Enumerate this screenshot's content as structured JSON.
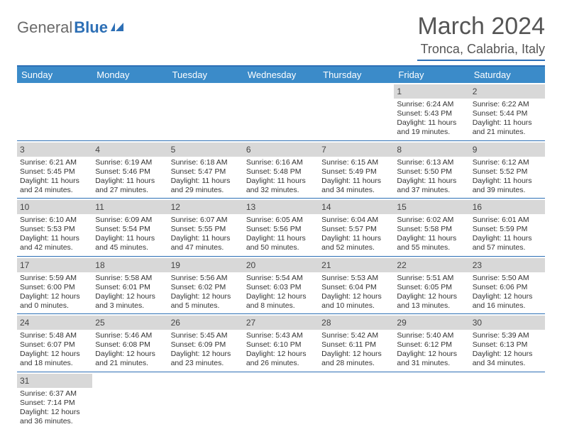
{
  "logo": {
    "general": "General",
    "blue": "Blue"
  },
  "title": "March 2024",
  "location": "Tronca, Calabria, Italy",
  "colors": {
    "header_bg": "#3b8bc9",
    "accent": "#2d6fb5",
    "daynum_bg": "#d8d8d8",
    "text": "#333333"
  },
  "dayNames": [
    "Sunday",
    "Monday",
    "Tuesday",
    "Wednesday",
    "Thursday",
    "Friday",
    "Saturday"
  ],
  "weeks": [
    [
      null,
      null,
      null,
      null,
      null,
      {
        "n": "1",
        "sr": "Sunrise: 6:24 AM",
        "ss": "Sunset: 5:43 PM",
        "dl1": "Daylight: 11 hours",
        "dl2": "and 19 minutes."
      },
      {
        "n": "2",
        "sr": "Sunrise: 6:22 AM",
        "ss": "Sunset: 5:44 PM",
        "dl1": "Daylight: 11 hours",
        "dl2": "and 21 minutes."
      }
    ],
    [
      {
        "n": "3",
        "sr": "Sunrise: 6:21 AM",
        "ss": "Sunset: 5:45 PM",
        "dl1": "Daylight: 11 hours",
        "dl2": "and 24 minutes."
      },
      {
        "n": "4",
        "sr": "Sunrise: 6:19 AM",
        "ss": "Sunset: 5:46 PM",
        "dl1": "Daylight: 11 hours",
        "dl2": "and 27 minutes."
      },
      {
        "n": "5",
        "sr": "Sunrise: 6:18 AM",
        "ss": "Sunset: 5:47 PM",
        "dl1": "Daylight: 11 hours",
        "dl2": "and 29 minutes."
      },
      {
        "n": "6",
        "sr": "Sunrise: 6:16 AM",
        "ss": "Sunset: 5:48 PM",
        "dl1": "Daylight: 11 hours",
        "dl2": "and 32 minutes."
      },
      {
        "n": "7",
        "sr": "Sunrise: 6:15 AM",
        "ss": "Sunset: 5:49 PM",
        "dl1": "Daylight: 11 hours",
        "dl2": "and 34 minutes."
      },
      {
        "n": "8",
        "sr": "Sunrise: 6:13 AM",
        "ss": "Sunset: 5:50 PM",
        "dl1": "Daylight: 11 hours",
        "dl2": "and 37 minutes."
      },
      {
        "n": "9",
        "sr": "Sunrise: 6:12 AM",
        "ss": "Sunset: 5:52 PM",
        "dl1": "Daylight: 11 hours",
        "dl2": "and 39 minutes."
      }
    ],
    [
      {
        "n": "10",
        "sr": "Sunrise: 6:10 AM",
        "ss": "Sunset: 5:53 PM",
        "dl1": "Daylight: 11 hours",
        "dl2": "and 42 minutes."
      },
      {
        "n": "11",
        "sr": "Sunrise: 6:09 AM",
        "ss": "Sunset: 5:54 PM",
        "dl1": "Daylight: 11 hours",
        "dl2": "and 45 minutes."
      },
      {
        "n": "12",
        "sr": "Sunrise: 6:07 AM",
        "ss": "Sunset: 5:55 PM",
        "dl1": "Daylight: 11 hours",
        "dl2": "and 47 minutes."
      },
      {
        "n": "13",
        "sr": "Sunrise: 6:05 AM",
        "ss": "Sunset: 5:56 PM",
        "dl1": "Daylight: 11 hours",
        "dl2": "and 50 minutes."
      },
      {
        "n": "14",
        "sr": "Sunrise: 6:04 AM",
        "ss": "Sunset: 5:57 PM",
        "dl1": "Daylight: 11 hours",
        "dl2": "and 52 minutes."
      },
      {
        "n": "15",
        "sr": "Sunrise: 6:02 AM",
        "ss": "Sunset: 5:58 PM",
        "dl1": "Daylight: 11 hours",
        "dl2": "and 55 minutes."
      },
      {
        "n": "16",
        "sr": "Sunrise: 6:01 AM",
        "ss": "Sunset: 5:59 PM",
        "dl1": "Daylight: 11 hours",
        "dl2": "and 57 minutes."
      }
    ],
    [
      {
        "n": "17",
        "sr": "Sunrise: 5:59 AM",
        "ss": "Sunset: 6:00 PM",
        "dl1": "Daylight: 12 hours",
        "dl2": "and 0 minutes."
      },
      {
        "n": "18",
        "sr": "Sunrise: 5:58 AM",
        "ss": "Sunset: 6:01 PM",
        "dl1": "Daylight: 12 hours",
        "dl2": "and 3 minutes."
      },
      {
        "n": "19",
        "sr": "Sunrise: 5:56 AM",
        "ss": "Sunset: 6:02 PM",
        "dl1": "Daylight: 12 hours",
        "dl2": "and 5 minutes."
      },
      {
        "n": "20",
        "sr": "Sunrise: 5:54 AM",
        "ss": "Sunset: 6:03 PM",
        "dl1": "Daylight: 12 hours",
        "dl2": "and 8 minutes."
      },
      {
        "n": "21",
        "sr": "Sunrise: 5:53 AM",
        "ss": "Sunset: 6:04 PM",
        "dl1": "Daylight: 12 hours",
        "dl2": "and 10 minutes."
      },
      {
        "n": "22",
        "sr": "Sunrise: 5:51 AM",
        "ss": "Sunset: 6:05 PM",
        "dl1": "Daylight: 12 hours",
        "dl2": "and 13 minutes."
      },
      {
        "n": "23",
        "sr": "Sunrise: 5:50 AM",
        "ss": "Sunset: 6:06 PM",
        "dl1": "Daylight: 12 hours",
        "dl2": "and 16 minutes."
      }
    ],
    [
      {
        "n": "24",
        "sr": "Sunrise: 5:48 AM",
        "ss": "Sunset: 6:07 PM",
        "dl1": "Daylight: 12 hours",
        "dl2": "and 18 minutes."
      },
      {
        "n": "25",
        "sr": "Sunrise: 5:46 AM",
        "ss": "Sunset: 6:08 PM",
        "dl1": "Daylight: 12 hours",
        "dl2": "and 21 minutes."
      },
      {
        "n": "26",
        "sr": "Sunrise: 5:45 AM",
        "ss": "Sunset: 6:09 PM",
        "dl1": "Daylight: 12 hours",
        "dl2": "and 23 minutes."
      },
      {
        "n": "27",
        "sr": "Sunrise: 5:43 AM",
        "ss": "Sunset: 6:10 PM",
        "dl1": "Daylight: 12 hours",
        "dl2": "and 26 minutes."
      },
      {
        "n": "28",
        "sr": "Sunrise: 5:42 AM",
        "ss": "Sunset: 6:11 PM",
        "dl1": "Daylight: 12 hours",
        "dl2": "and 28 minutes."
      },
      {
        "n": "29",
        "sr": "Sunrise: 5:40 AM",
        "ss": "Sunset: 6:12 PM",
        "dl1": "Daylight: 12 hours",
        "dl2": "and 31 minutes."
      },
      {
        "n": "30",
        "sr": "Sunrise: 5:39 AM",
        "ss": "Sunset: 6:13 PM",
        "dl1": "Daylight: 12 hours",
        "dl2": "and 34 minutes."
      }
    ],
    [
      {
        "n": "31",
        "sr": "Sunrise: 6:37 AM",
        "ss": "Sunset: 7:14 PM",
        "dl1": "Daylight: 12 hours",
        "dl2": "and 36 minutes."
      },
      null,
      null,
      null,
      null,
      null,
      null
    ]
  ]
}
